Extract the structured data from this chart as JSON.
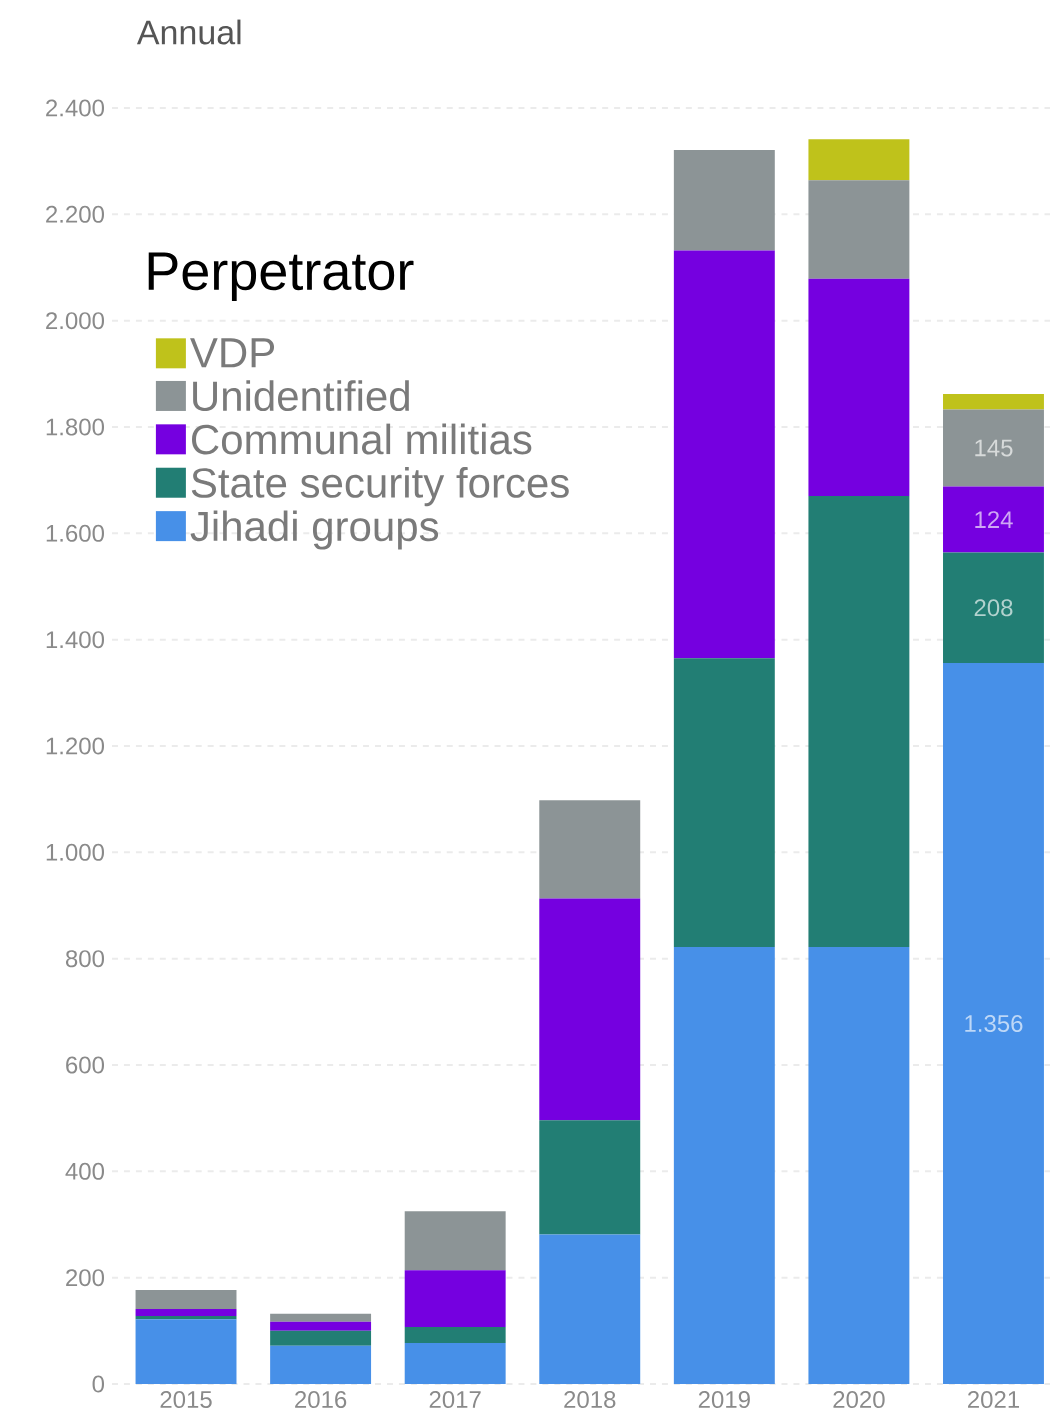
{
  "chart_data": {
    "type": "bar",
    "title": "Annual",
    "legend_title": "Perpetrator",
    "stacked": true,
    "grid": "y",
    "legend": "top left",
    "categories": [
      "2015",
      "2016",
      "2017",
      "2018",
      "2019",
      "2020",
      "2021"
    ],
    "ylim": [
      0,
      2400
    ],
    "yticks": [
      0,
      200,
      400,
      600,
      800,
      {
        "value": 1000,
        "label": "1.000"
      },
      {
        "value": 1200,
        "label": "1.200"
      },
      {
        "value": 1400,
        "label": "1.400"
      },
      {
        "value": 1600,
        "label": "1.600"
      },
      {
        "value": 1800,
        "label": "1.800"
      },
      {
        "value": 2000,
        "label": "2.000"
      },
      {
        "value": 2200,
        "label": "2.200"
      },
      {
        "value": 2400,
        "label": "2.400"
      }
    ],
    "series": [
      {
        "name": "Jihadi groups",
        "color": "#4790e8",
        "values": [
          122,
          72,
          77,
          281,
          822,
          822,
          1356
        ],
        "value_labels": [
          null,
          null,
          null,
          null,
          null,
          null,
          "1.356"
        ]
      },
      {
        "name": "State security forces",
        "color": "#227e74",
        "values": [
          6,
          28,
          30,
          215,
          543,
          848,
          208
        ],
        "value_labels": [
          null,
          null,
          null,
          null,
          null,
          null,
          "208"
        ]
      },
      {
        "name": "Communal militias",
        "color": "#7500e0",
        "values": [
          13,
          17,
          107,
          417,
          767,
          409,
          124
        ],
        "value_labels": [
          null,
          null,
          null,
          null,
          null,
          null,
          "124"
        ]
      },
      {
        "name": "Unidentified",
        "color": "#8c9496",
        "values": [
          36,
          15,
          111,
          185,
          189,
          185,
          145
        ],
        "value_labels": [
          null,
          null,
          null,
          null,
          null,
          null,
          "145"
        ]
      },
      {
        "name": "VDP",
        "color": "#bfc21b",
        "values": [
          0,
          0,
          0,
          0,
          0,
          77,
          29
        ]
      }
    ]
  }
}
